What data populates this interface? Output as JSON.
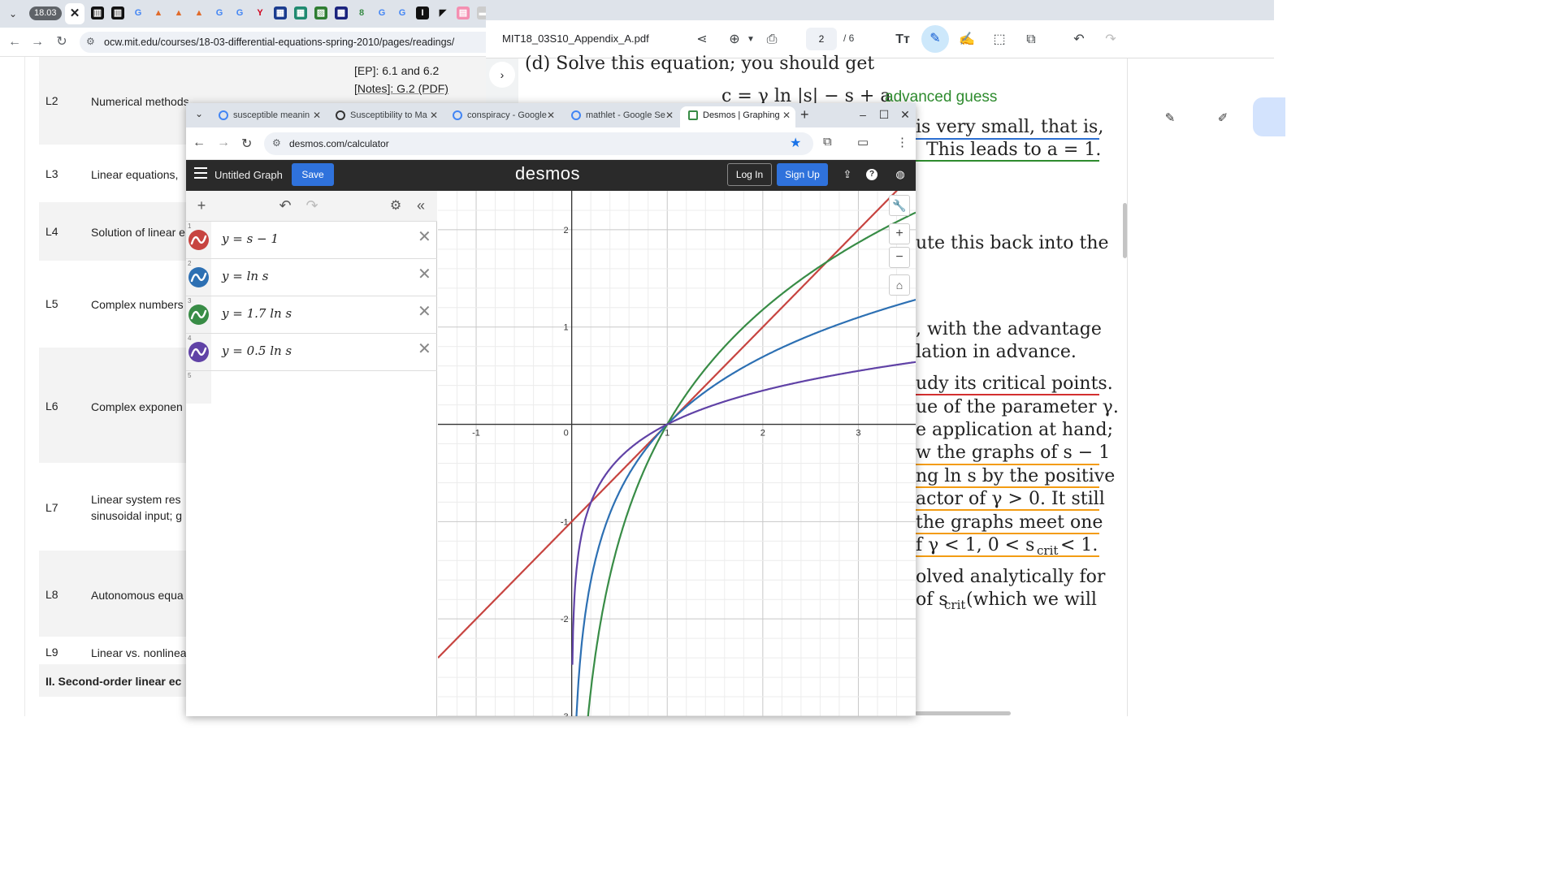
{
  "bg_browser": {
    "tab_badge": "18.03",
    "url": "ocw.mit.edu/courses/18-03-differential-equations-spring-2010/pages/readings/"
  },
  "ocw": {
    "ep_text": "[EP]: 6.1 and 6.2",
    "notes_text": "[Notes]: G.2 (PDF)",
    "lectures": [
      {
        "num": "L2",
        "title": "Numerical methods"
      },
      {
        "num": "L3",
        "title": "Linear equations,"
      },
      {
        "num": "L4",
        "title": "Solution of linear e"
      },
      {
        "num": "L5",
        "title": "Complex numbers"
      },
      {
        "num": "L6",
        "title": "Complex exponen"
      },
      {
        "num": "L7",
        "title": "Linear system res",
        "title2": "sinusoidal input; g"
      },
      {
        "num": "L8",
        "title": "Autonomous equa"
      },
      {
        "num": "L9",
        "title": "Linear vs. nonlinea"
      }
    ],
    "section": "II. Second-order linear ec"
  },
  "pdf": {
    "filename": "MIT18_03S10_Appendix_A.pdf",
    "page_current": "2",
    "page_total": "/ 6",
    "annotation": "advanced guess",
    "lines": [
      {
        "text": "(d) Solve this equation; you should get"
      },
      {
        "text": "c = γ ln |s| − s + a"
      },
      {
        "text": "is very small, that is,"
      },
      {
        "text": "This leads to a = 1."
      },
      {
        "text": "ute this back into the"
      },
      {
        "text": ", with the advantage"
      },
      {
        "text": "lation in advance."
      },
      {
        "text": "udy its critical points."
      },
      {
        "text": "ue of the parameter γ."
      },
      {
        "text": "e application at hand;"
      },
      {
        "text": "w the graphs of s − 1"
      },
      {
        "text": "ng ln s by the positive"
      },
      {
        "text": "actor of γ > 0. It still"
      },
      {
        "text": " the graphs meet one"
      },
      {
        "text": "f γ < 1, 0 < s"
      },
      {
        "text": "olved analytically for"
      },
      {
        "text": "of s"
      },
      {
        "text": "crit"
      },
      {
        "text": "crit"
      },
      {
        "text": " < 1."
      },
      {
        "text": " (which we will"
      }
    ]
  },
  "desmos": {
    "tabs": [
      {
        "label": "susceptible meanin"
      },
      {
        "label": "Susceptibility to Ma"
      },
      {
        "label": "conspiracy - Google"
      },
      {
        "label": "mathlet - Google Se"
      },
      {
        "label": "Desmos | Graphing"
      }
    ],
    "url": "desmos.com/calculator",
    "graph_title": "Untitled Graph",
    "save_label": "Save",
    "logo": "desmos",
    "login_label": "Log In",
    "signup_label": "Sign Up",
    "empty_row_num": "5",
    "expressions": [
      {
        "num": "1",
        "text": "y = s − 1",
        "color": "#c74440"
      },
      {
        "num": "2",
        "text": "y =  ln s",
        "color": "#2d70b3"
      },
      {
        "num": "3",
        "text": "y = 1.7 ln s",
        "color": "#388c46"
      },
      {
        "num": "4",
        "text": "y = 0.5 ln s",
        "color": "#6042a6"
      }
    ]
  },
  "chart_data": {
    "type": "line",
    "xlim": [
      -1.4,
      3.6
    ],
    "ylim": [
      -3,
      2.4
    ],
    "grid": true,
    "x_ticks": [
      "-1",
      "0",
      "1",
      "2",
      "3"
    ],
    "y_ticks": [
      "-3",
      "-2",
      "-1",
      "1",
      "2"
    ],
    "series": [
      {
        "name": "y = s − 1",
        "expr": "s-1",
        "color": "#c74440"
      },
      {
        "name": "y =  ln s",
        "expr": "ln s",
        "color": "#2d70b3"
      },
      {
        "name": "y = 1.7 ln s",
        "expr": "1.7 ln s",
        "color": "#388c46"
      },
      {
        "name": "y = 0.5 ln s",
        "expr": "0.5 ln s",
        "color": "#6042a6"
      }
    ]
  }
}
